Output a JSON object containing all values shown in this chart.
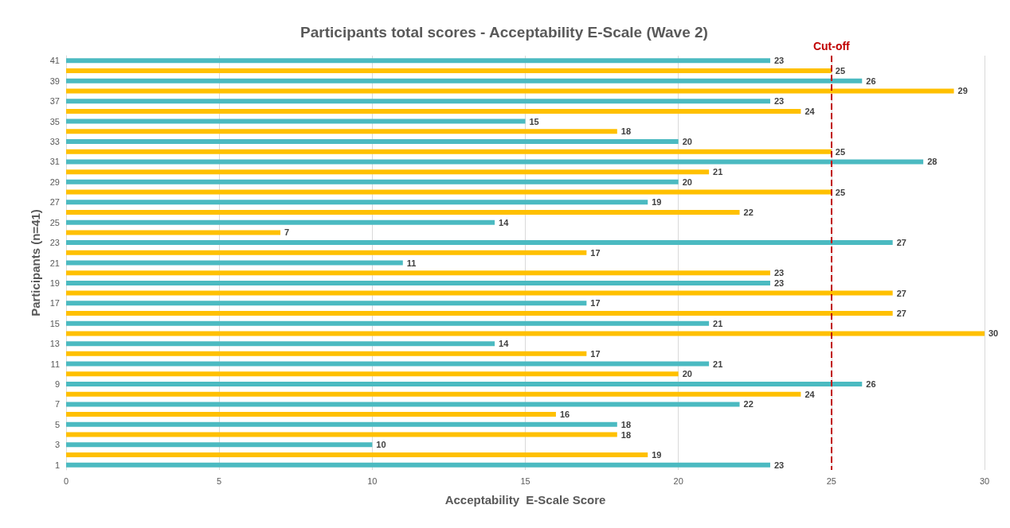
{
  "chart_data": {
    "type": "bar",
    "orientation": "horizontal",
    "title": "Participants total scores - Acceptability E-Scale (Wave 2)",
    "xlabel": "Acceptability  E-Scale Score",
    "ylabel": "Participants (n=41)",
    "categories": [
      "41",
      null,
      "39",
      null,
      "37",
      null,
      "35",
      null,
      "33",
      null,
      "31",
      null,
      "29",
      null,
      "27",
      null,
      "25",
      null,
      "23",
      null,
      "21",
      null,
      "19",
      null,
      "17",
      null,
      "15",
      null,
      "13",
      null,
      "11",
      null,
      "9",
      null,
      "7",
      null,
      "5",
      null,
      "3",
      null,
      "1"
    ],
    "values": [
      23,
      25,
      26,
      29,
      23,
      24,
      15,
      18,
      20,
      25,
      28,
      21,
      20,
      25,
      19,
      22,
      14,
      7,
      27,
      17,
      11,
      23,
      23,
      27,
      17,
      27,
      21,
      30,
      14,
      17,
      21,
      20,
      26,
      24,
      22,
      16,
      18,
      18,
      10,
      19,
      23
    ],
    "colors": [
      "#4bbac1",
      "#ffc000",
      "#4bbac1",
      "#ffc000",
      "#4bbac1",
      "#ffc000",
      "#4bbac1",
      "#ffc000",
      "#4bbac1",
      "#ffc000",
      "#4bbac1",
      "#ffc000",
      "#4bbac1",
      "#ffc000",
      "#4bbac1",
      "#ffc000",
      "#4bbac1",
      "#ffc000",
      "#4bbac1",
      "#ffc000",
      "#4bbac1",
      "#ffc000",
      "#4bbac1",
      "#ffc000",
      "#4bbac1",
      "#ffc000",
      "#4bbac1",
      "#ffc000",
      "#4bbac1",
      "#ffc000",
      "#4bbac1",
      "#ffc000",
      "#4bbac1",
      "#ffc000",
      "#4bbac1",
      "#ffc000",
      "#4bbac1",
      "#ffc000",
      "#4bbac1",
      "#ffc000",
      "#4bbac1"
    ],
    "xlim": [
      0,
      30
    ],
    "xticks": [
      0,
      5,
      10,
      15,
      20,
      25,
      30
    ],
    "ref_lines": [
      {
        "axis": "x",
        "value": 25,
        "label": "Cut-off",
        "color": "#c00000",
        "line_style": "dashed"
      }
    ],
    "data_labels": true,
    "grid": "x"
  }
}
